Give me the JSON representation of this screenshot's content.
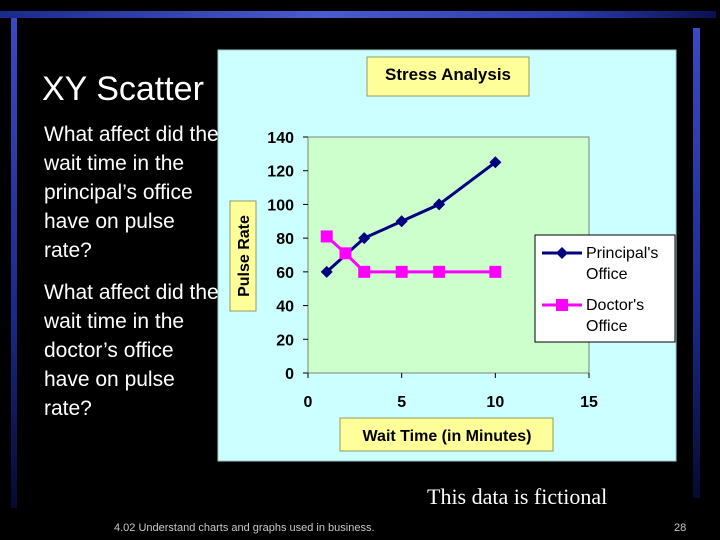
{
  "slide": {
    "title": "XY Scatter",
    "question_1": "What affect did the wait time in the principal’s office have on pulse rate?",
    "question_2": "What affect did the wait time in the doctor’s office have on pulse rate?",
    "footnote": "This data is fictional",
    "footer": "4.02 Understand charts and graphs used in business.",
    "page_number": "28"
  },
  "colors": {
    "background": "#000000",
    "frame": "#2a3aa8",
    "chart_area": "#ccffff",
    "plot_area": "#ccffcc",
    "title_box": "#ffff99",
    "principal": "#000080",
    "doctor": "#ff00ff"
  },
  "chart_data": {
    "type": "scatter",
    "title": "Stress Analysis",
    "xlabel": "Wait Time (in Minutes)",
    "ylabel": "Pulse Rate",
    "xlim": [
      0,
      15
    ],
    "ylim": [
      0,
      140
    ],
    "xticks": [
      "0",
      "5",
      "10",
      "15"
    ],
    "yticks": [
      "0",
      "20",
      "40",
      "60",
      "80",
      "100",
      "120",
      "140"
    ],
    "grid": false,
    "legend_position": "right",
    "series": [
      {
        "name": "Principal's Office",
        "marker": "diamond",
        "color": "#000080",
        "points": [
          [
            1,
            60
          ],
          [
            3,
            80
          ],
          [
            5,
            90
          ],
          [
            7,
            100
          ],
          [
            10,
            125
          ]
        ]
      },
      {
        "name": "Doctor's Office",
        "marker": "square",
        "color": "#ff00ff",
        "points": [
          [
            1,
            81
          ],
          [
            2,
            71
          ],
          [
            3,
            60
          ],
          [
            5,
            60
          ],
          [
            7,
            60
          ],
          [
            10,
            60
          ]
        ]
      }
    ]
  }
}
